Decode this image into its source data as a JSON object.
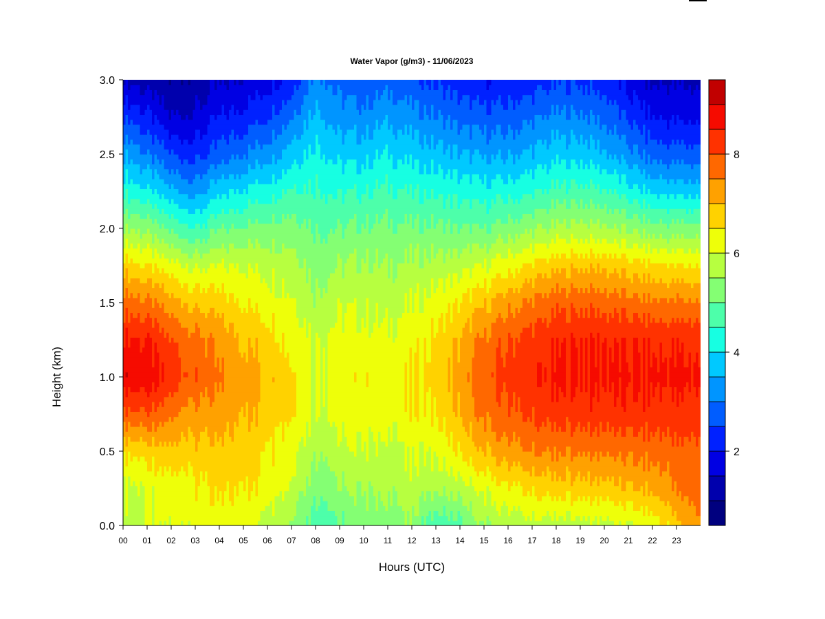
{
  "chart_data": {
    "type": "heatmap",
    "title": "Water Vapor (g/m3) - 11/06/2023",
    "xlabel": "Hours (UTC)",
    "ylabel": "Height (km)",
    "xlim": [
      0,
      24
    ],
    "ylim": [
      0,
      3.0
    ],
    "x_ticks": [
      0,
      1,
      2,
      3,
      4,
      5,
      6,
      7,
      8,
      9,
      10,
      11,
      12,
      13,
      14,
      15,
      16,
      17,
      18,
      19,
      20,
      21,
      22,
      23
    ],
    "x_tick_labels": [
      "00",
      "01",
      "02",
      "03",
      "04",
      "05",
      "06",
      "07",
      "08",
      "09",
      "10",
      "11",
      "12",
      "13",
      "14",
      "15",
      "16",
      "17",
      "18",
      "19",
      "20",
      "21",
      "22",
      "23"
    ],
    "y_ticks": [
      0.0,
      0.5,
      1.0,
      1.5,
      2.0,
      2.5,
      3.0
    ],
    "y_tick_labels": [
      "0.0",
      "0.5",
      "1.0",
      "1.5",
      "2.0",
      "2.5",
      "3.0"
    ],
    "colorbar": {
      "levels": [
        0.5,
        1.0,
        1.5,
        2.0,
        2.5,
        3.0,
        3.5,
        4.0,
        4.5,
        5.0,
        5.5,
        6.0,
        6.5,
        7.0,
        7.5,
        8.0,
        8.5,
        9.0,
        9.5
      ],
      "colors": [
        "#00007f",
        "#0000ad",
        "#0000e3",
        "#0021ff",
        "#005dff",
        "#0095ff",
        "#00c9ff",
        "#17ffe2",
        "#4dffaa",
        "#84ff73",
        "#b7ff40",
        "#eeff09",
        "#ffd200",
        "#ffa100",
        "#ff6800",
        "#ff3200",
        "#f60b00",
        "#c10000",
        "#7f0000"
      ],
      "tick_values": [
        2,
        4,
        6,
        8
      ],
      "tick_labels": [
        "2",
        "4",
        "6",
        "8"
      ]
    },
    "hours": [
      0,
      1,
      2,
      3,
      4,
      5,
      6,
      7,
      8,
      9,
      10,
      11,
      12,
      13,
      14,
      15,
      16,
      17,
      18,
      19,
      20,
      21,
      22,
      23,
      24
    ],
    "heights_km": [
      0.0,
      0.25,
      0.5,
      0.75,
      1.0,
      1.25,
      1.5,
      1.75,
      2.0,
      2.25,
      2.5,
      2.75,
      3.0
    ],
    "values": [
      [
        5.8,
        5.9,
        6.6,
        8.0,
        8.9,
        8.6,
        7.8,
        6.8,
        5.6,
        4.4,
        3.5,
        2.5,
        1.5
      ],
      [
        6.0,
        6.0,
        6.7,
        7.9,
        8.8,
        8.5,
        7.6,
        6.5,
        5.3,
        4.1,
        3.0,
        2.1,
        1.2
      ],
      [
        6.0,
        6.2,
        6.8,
        7.6,
        8.3,
        8.0,
        7.2,
        6.2,
        4.9,
        3.6,
        2.5,
        1.5,
        1.0
      ],
      [
        6.2,
        6.4,
        6.8,
        7.3,
        7.9,
        7.7,
        6.9,
        5.9,
        4.5,
        3.3,
        2.3,
        1.6,
        1.1
      ],
      [
        6.2,
        6.5,
        6.8,
        7.2,
        7.5,
        7.3,
        6.7,
        6.0,
        4.9,
        3.8,
        2.7,
        2.0,
        1.4
      ],
      [
        6.2,
        6.6,
        6.8,
        7.1,
        7.3,
        7.0,
        6.5,
        6.0,
        5.1,
        4.1,
        3.0,
        2.2,
        1.6
      ],
      [
        5.8,
        6.4,
        6.5,
        6.9,
        7.0,
        6.8,
        6.3,
        5.9,
        5.2,
        4.3,
        3.3,
        2.5,
        1.8
      ],
      [
        5.5,
        6.0,
        6.3,
        6.6,
        6.6,
        6.4,
        6.1,
        5.8,
        5.3,
        4.6,
        3.8,
        3.0,
        2.2
      ],
      [
        4.7,
        5.2,
        5.6,
        6.0,
        6.0,
        6.0,
        5.6,
        5.3,
        5.0,
        4.6,
        4.2,
        3.7,
        3.2
      ],
      [
        4.9,
        5.4,
        5.8,
        6.2,
        6.3,
        6.2,
        5.9,
        5.5,
        5.0,
        4.4,
        3.8,
        3.2,
        2.8
      ],
      [
        5.2,
        5.6,
        6.0,
        6.3,
        6.4,
        6.2,
        5.9,
        5.6,
        5.1,
        4.5,
        3.8,
        3.2,
        2.6
      ],
      [
        5.2,
        5.6,
        5.8,
        6.2,
        6.2,
        6.1,
        5.8,
        5.5,
        5.1,
        4.6,
        4.0,
        3.4,
        2.8
      ],
      [
        5.4,
        5.8,
        6.0,
        6.4,
        6.5,
        6.3,
        6.0,
        5.6,
        5.1,
        4.5,
        3.8,
        3.2,
        2.6
      ],
      [
        4.6,
        5.6,
        6.1,
        6.5,
        6.7,
        6.6,
        6.2,
        5.7,
        5.1,
        4.4,
        3.7,
        3.0,
        2.4
      ],
      [
        4.8,
        5.7,
        6.5,
        7.0,
        7.2,
        7.0,
        6.5,
        5.8,
        5.0,
        4.3,
        3.5,
        2.8,
        2.2
      ],
      [
        5.5,
        6.1,
        7.0,
        7.6,
        7.8,
        7.6,
        6.9,
        6.0,
        5.0,
        4.2,
        3.4,
        2.7,
        2.0
      ],
      [
        5.7,
        6.4,
        7.3,
        7.9,
        8.2,
        8.0,
        7.3,
        6.3,
        5.2,
        4.3,
        3.4,
        2.7,
        2.1
      ],
      [
        5.8,
        6.6,
        7.5,
        8.1,
        8.4,
        8.2,
        7.6,
        6.6,
        5.4,
        4.4,
        3.6,
        2.9,
        2.2
      ],
      [
        5.7,
        6.7,
        7.5,
        8.2,
        8.6,
        8.4,
        7.8,
        6.8,
        5.6,
        4.6,
        3.8,
        3.1,
        2.4
      ],
      [
        5.8,
        6.8,
        7.6,
        8.3,
        8.6,
        8.5,
        7.9,
        6.9,
        5.7,
        4.7,
        3.8,
        3.1,
        2.4
      ],
      [
        5.9,
        6.8,
        7.6,
        8.3,
        8.6,
        8.5,
        7.8,
        6.9,
        5.6,
        4.6,
        3.6,
        2.9,
        2.2
      ],
      [
        5.9,
        6.9,
        7.6,
        8.3,
        8.6,
        8.4,
        7.7,
        6.7,
        5.4,
        4.2,
        3.2,
        2.4,
        1.8
      ],
      [
        6.2,
        7.1,
        7.7,
        8.3,
        8.6,
        8.4,
        7.6,
        6.6,
        5.2,
        3.9,
        2.8,
        2.0,
        1.4
      ],
      [
        6.8,
        7.5,
        7.8,
        8.3,
        8.6,
        8.4,
        7.6,
        6.5,
        5.2,
        3.8,
        2.7,
        1.9,
        1.4
      ],
      [
        7.4,
        7.9,
        7.9,
        8.3,
        8.6,
        8.4,
        7.6,
        6.5,
        5.2,
        3.8,
        2.7,
        1.9,
        1.4
      ]
    ]
  }
}
